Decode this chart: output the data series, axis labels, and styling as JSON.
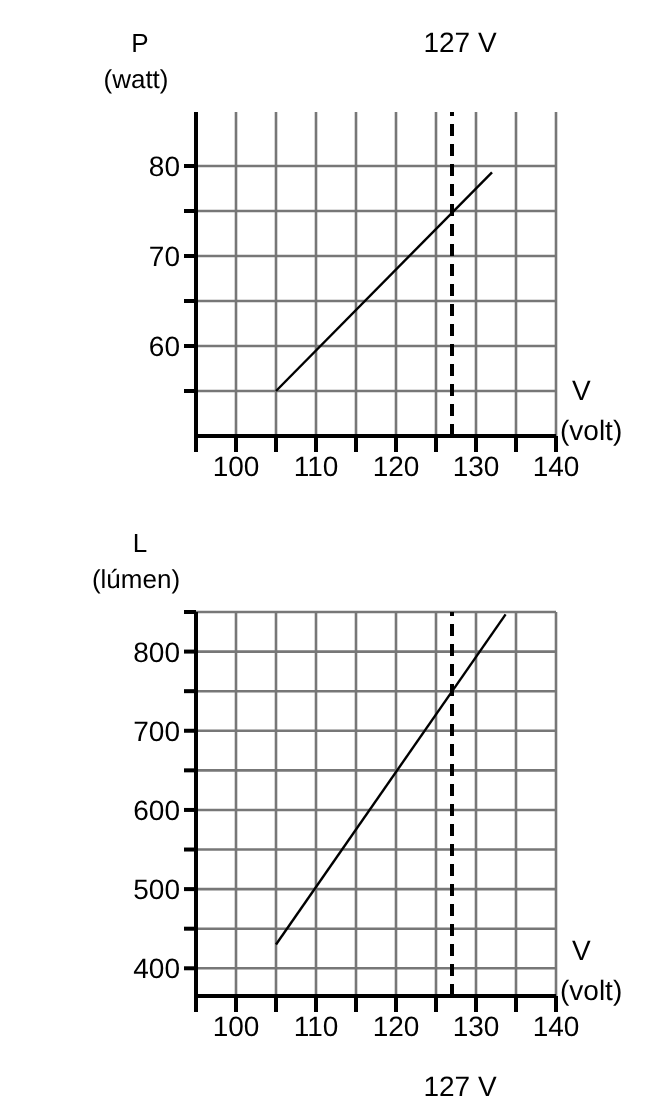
{
  "chart_data": [
    {
      "type": "line",
      "xlabel": "V\n(volt)",
      "ylabel": "P\n(watt)",
      "xlim": [
        95,
        140
      ],
      "xticks": [
        {
          "value": 95,
          "label": null
        },
        100,
        {
          "value": 105,
          "label": null
        },
        110,
        {
          "value": 115,
          "label": null
        },
        120,
        {
          "value": 125,
          "label": null
        },
        130,
        {
          "value": 135,
          "label": null
        },
        140
      ],
      "ylim": [
        50,
        86
      ],
      "yticks": [
        {
          "value": 55,
          "label": null
        },
        60,
        {
          "value": 65,
          "label": null
        },
        70,
        {
          "value": 75,
          "label": null
        },
        80
      ],
      "grid": true,
      "series": [
        {
          "color": "#000000",
          "x": [
            105,
            132
          ],
          "values": [
            55,
            79.3
          ]
        }
      ],
      "ref_lines": [
        {
          "axis": "x",
          "value": 127,
          "label": "127 V",
          "line_style": "dashed",
          "color": "#000000"
        }
      ]
    },
    {
      "type": "line",
      "xlabel": "V\n(volt)",
      "ylabel": "L\n(lúmen)",
      "xlim": [
        95,
        140
      ],
      "xticks": [
        {
          "value": 95,
          "label": null
        },
        100,
        {
          "value": 105,
          "label": null
        },
        110,
        {
          "value": 115,
          "label": null
        },
        120,
        {
          "value": 125,
          "label": null
        },
        130,
        {
          "value": 135,
          "label": null
        },
        140
      ],
      "ylim": [
        365,
        850
      ],
      "yticks": [
        400,
        {
          "value": 450,
          "label": null
        },
        500,
        {
          "value": 550,
          "label": null
        },
        600,
        {
          "value": 650,
          "label": null
        },
        700,
        {
          "value": 750,
          "label": null
        },
        800,
        {
          "value": 850,
          "label": null
        }
      ],
      "grid": true,
      "series": [
        {
          "color": "#000000",
          "x": [
            105,
            133.7
          ],
          "values": [
            430,
            847
          ]
        }
      ],
      "ref_lines": [
        {
          "axis": "x",
          "value": 127,
          "label": "127 V",
          "line_style": "dashed",
          "color": "#000000"
        }
      ]
    }
  ]
}
